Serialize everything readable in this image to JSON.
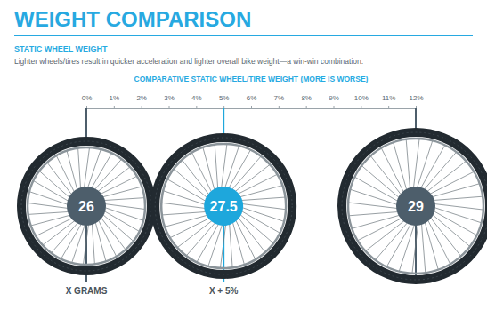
{
  "chart_data": {
    "type": "wheel",
    "title": "WEIGHT COMPARISON",
    "subtitle": "STATIC WHEEL WEIGHT",
    "description": "Lighter wheels/tires result in quicker acceleration and lighter overall bike weight—a win-win combination.",
    "x_label": "COMPARATIVE STATIC WHEEL/TIRE WEIGHT (MORE IS WORSE)",
    "categories": [
      "26",
      "27.5",
      "29"
    ],
    "values": [
      0,
      5,
      12
    ],
    "colors": [
      "#4d5e6b",
      "#1ea7dc",
      "#4d5e6b"
    ],
    "xlim": [
      0,
      12
    ],
    "xticks": [
      {
        "value": 0,
        "label": "0%"
      },
      {
        "value": 1,
        "label": "1%"
      },
      {
        "value": 2,
        "label": "2%"
      },
      {
        "value": 3,
        "label": "3%"
      },
      {
        "value": 4,
        "label": "4%"
      },
      {
        "value": 5,
        "label": "5%"
      },
      {
        "value": 6,
        "label": "6%"
      },
      {
        "value": 7,
        "label": "7%"
      },
      {
        "value": 8,
        "label": "8%"
      },
      {
        "value": 9,
        "label": "9%"
      },
      {
        "value": 10,
        "label": "10%"
      },
      {
        "value": 11,
        "label": "11%"
      },
      {
        "value": 12,
        "label": "12%"
      }
    ],
    "annotations": [
      {
        "text": "X GRAMS",
        "x": 0
      },
      {
        "text": "X + 5%",
        "x": 5
      }
    ]
  }
}
